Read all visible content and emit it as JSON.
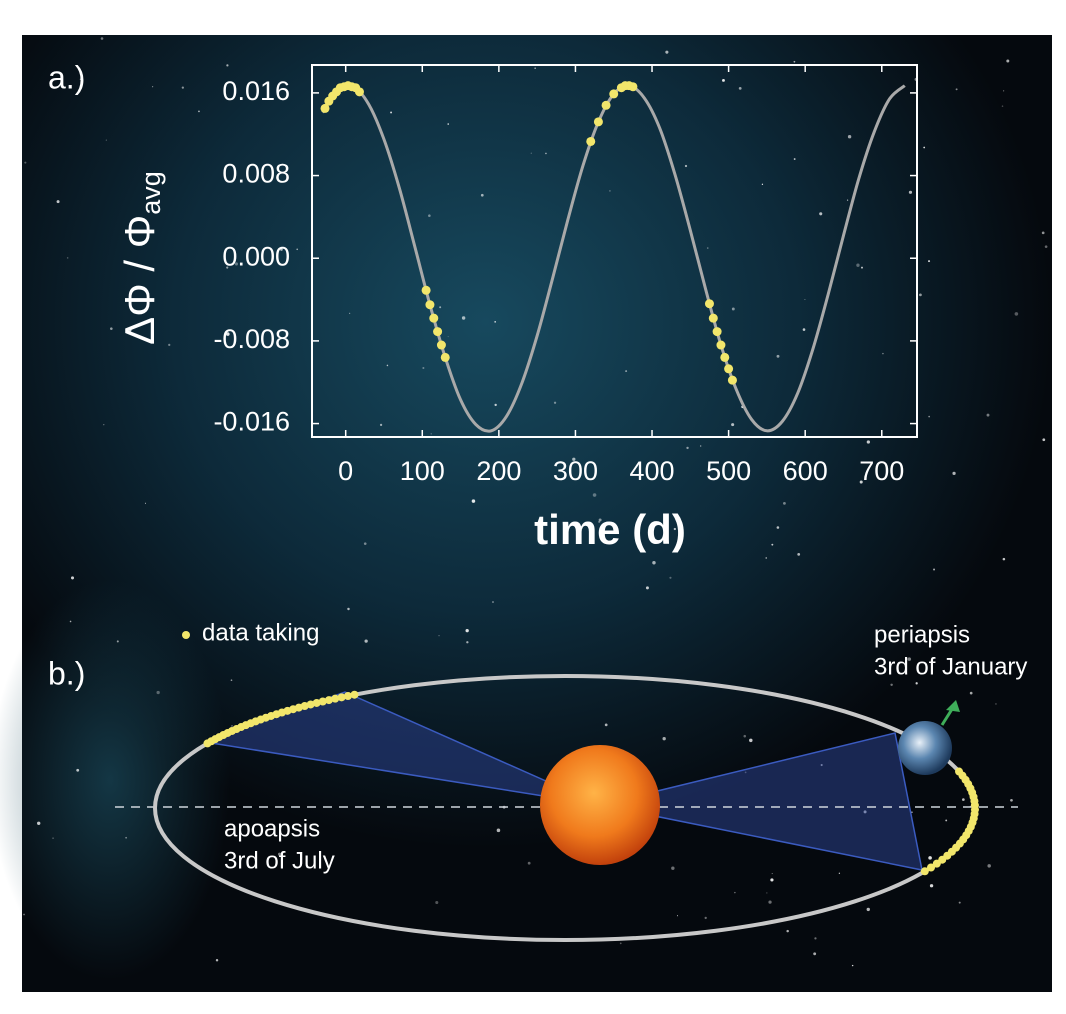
{
  "chart_data": {
    "type": "line",
    "panel_label": "a.)",
    "xlabel": "time (d)",
    "ylabel": "ΔΦ / Φ",
    "ylabel_sub": "avg",
    "x": [
      -30,
      -10,
      10,
      30,
      50,
      70,
      90,
      110,
      130,
      150,
      170,
      190,
      210,
      230,
      250,
      270,
      290,
      310,
      330,
      350,
      370,
      390,
      410,
      430,
      450,
      470,
      490,
      510,
      530,
      550,
      570,
      590,
      610,
      630,
      650,
      670,
      690,
      710,
      730
    ],
    "values": [
      0.0141,
      0.0163,
      0.0166,
      0.0149,
      0.0115,
      0.0068,
      0.0012,
      -0.0045,
      -0.0096,
      -0.0137,
      -0.0161,
      -0.0167,
      -0.0153,
      -0.0121,
      -0.0075,
      -0.002,
      0.0037,
      0.009,
      0.0132,
      0.0159,
      0.0167,
      0.0155,
      0.0126,
      0.0081,
      0.0027,
      -0.003,
      -0.0084,
      -0.0127,
      -0.0156,
      -0.0167,
      -0.0158,
      -0.0131,
      -0.0088,
      -0.0035,
      0.0022,
      0.0077,
      0.0122,
      0.0154,
      0.0167
    ],
    "color": "#a9a9a9",
    "points": {
      "color": "#f2e66b",
      "x": [
        -27,
        -22,
        -17,
        -12,
        -7,
        -2,
        3,
        8,
        13,
        18,
        105,
        110,
        115,
        120,
        125,
        130,
        320,
        330,
        340,
        350,
        360,
        365,
        370,
        375,
        475,
        480,
        485,
        490,
        495,
        500,
        505
      ],
      "values": [
        0.0145,
        0.0152,
        0.0157,
        0.0161,
        0.0165,
        0.0166,
        0.0167,
        0.0166,
        0.0165,
        0.0161,
        -0.0031,
        -0.0045,
        -0.0058,
        -0.0071,
        -0.0084,
        -0.0096,
        0.0113,
        0.0132,
        0.0148,
        0.0159,
        0.0165,
        0.0167,
        0.0167,
        0.0166,
        -0.0044,
        -0.0058,
        -0.0071,
        -0.0084,
        -0.0096,
        -0.0107,
        -0.0118
      ]
    },
    "xlim": [
      -44,
      746
    ],
    "ylim": [
      -0.0173,
      0.0187
    ],
    "xticks": [
      0,
      100,
      200,
      300,
      400,
      500,
      600,
      700
    ],
    "yticks": [
      0.016,
      0.008,
      {
        "value": 0,
        "label": "0.000"
      },
      -0.008,
      -0.016
    ]
  },
  "diagram": {
    "panel_label": "b.)",
    "legend": "data taking",
    "periapsis": "periapsis",
    "periapsis_date": "3rd of January",
    "apoapsis": "apoapsis",
    "apoapsis_date": "3rd of July"
  }
}
